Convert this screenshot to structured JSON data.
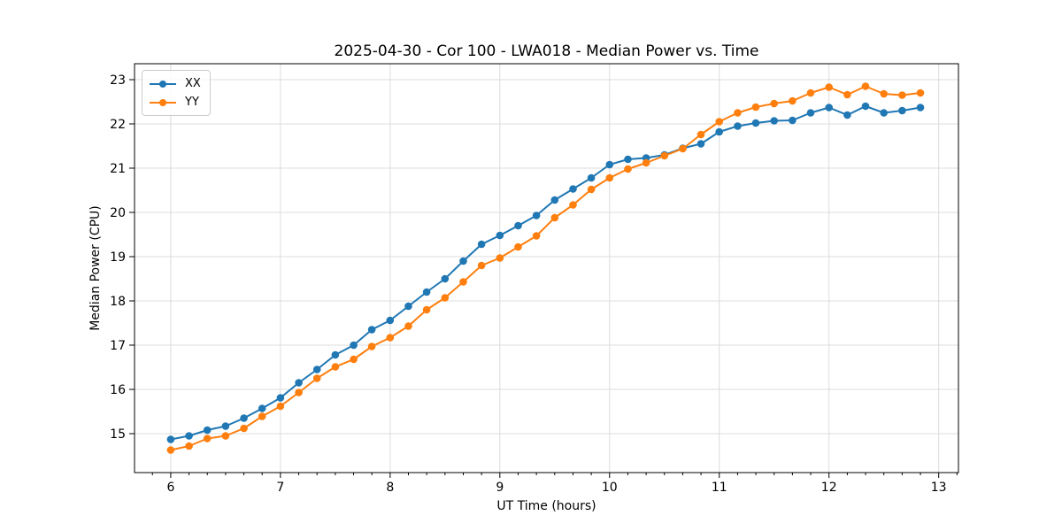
{
  "chart_data": {
    "type": "line",
    "title": "2025-04-30 - Cor 100 - LWA018 - Median Power vs. Time",
    "xlabel": "UT Time (hours)",
    "ylabel": "Median Power (CPU)",
    "xlim": [
      5.67,
      13.18
    ],
    "ylim": [
      14.12,
      23.36
    ],
    "x_ticks": [
      6,
      7,
      8,
      9,
      10,
      11,
      12,
      13
    ],
    "y_ticks": [
      15,
      16,
      17,
      18,
      19,
      20,
      21,
      22,
      23
    ],
    "x_minor_tick_step_hours": 0.1667,
    "grid": true,
    "grid_color": "#dcdcdc",
    "legend_position": "upper left",
    "x": [
      6.0,
      6.167,
      6.333,
      6.5,
      6.667,
      6.833,
      7.0,
      7.167,
      7.333,
      7.5,
      7.667,
      7.833,
      8.0,
      8.167,
      8.333,
      8.5,
      8.667,
      8.833,
      9.0,
      9.167,
      9.333,
      9.5,
      9.667,
      9.833,
      10.0,
      10.167,
      10.333,
      10.5,
      10.667,
      10.833,
      11.0,
      11.167,
      11.333,
      11.5,
      11.667,
      11.833,
      12.0,
      12.167,
      12.333,
      12.5,
      12.667,
      12.833
    ],
    "series": [
      {
        "name": "XX",
        "color": "#1f77b4",
        "values": [
          14.87,
          14.95,
          15.08,
          15.17,
          15.35,
          15.57,
          15.81,
          16.15,
          16.45,
          16.78,
          17.0,
          17.35,
          17.56,
          17.88,
          18.2,
          18.5,
          18.9,
          19.28,
          19.48,
          19.7,
          19.93,
          20.28,
          20.53,
          20.78,
          21.08,
          21.2,
          21.23,
          21.3,
          21.45,
          21.55,
          21.82,
          21.95,
          22.02,
          22.07,
          22.08,
          22.25,
          22.37,
          22.2,
          22.4,
          22.25,
          22.3,
          22.37
        ]
      },
      {
        "name": "YY",
        "color": "#ff7f0e",
        "values": [
          14.63,
          14.72,
          14.89,
          14.95,
          15.12,
          15.39,
          15.62,
          15.93,
          16.25,
          16.51,
          16.68,
          16.97,
          17.17,
          17.43,
          17.8,
          18.07,
          18.43,
          18.8,
          18.97,
          19.22,
          19.47,
          19.88,
          20.17,
          20.52,
          20.78,
          20.98,
          21.12,
          21.28,
          21.44,
          21.76,
          22.05,
          22.25,
          22.38,
          22.46,
          22.52,
          22.7,
          22.83,
          22.66,
          22.85,
          22.68,
          22.65,
          22.7
        ]
      }
    ]
  }
}
